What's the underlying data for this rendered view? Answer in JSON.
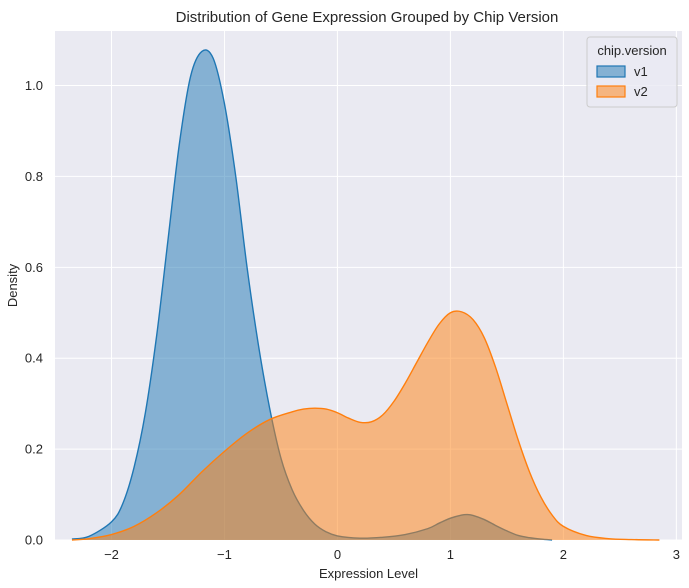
{
  "chart_data": {
    "type": "area",
    "title": "Distribution of Gene Expression Grouped by Chip Version",
    "xlabel": "Expression Level",
    "ylabel": "Density",
    "xlim": [
      -2.5,
      3.05
    ],
    "ylim": [
      0,
      1.12
    ],
    "xticks": [
      -2,
      -1,
      0,
      1,
      2,
      3
    ],
    "xtick_labels": [
      "−2",
      "−1",
      "0",
      "1",
      "2",
      "3"
    ],
    "yticks": [
      0.0,
      0.2,
      0.4,
      0.6,
      0.8,
      1.0
    ],
    "ytick_labels": [
      "0.0",
      "0.2",
      "0.4",
      "0.6",
      "0.8",
      "1.0"
    ],
    "grid": true,
    "background": "#eaeaf2",
    "legend": {
      "title": "chip.version",
      "placement": "top-right"
    },
    "series": [
      {
        "name": "v1",
        "color": "#1f77b4",
        "fill_alpha": 0.5,
        "x": [
          -2.35,
          -2.2,
          -2.0,
          -1.9,
          -1.8,
          -1.7,
          -1.6,
          -1.5,
          -1.4,
          -1.3,
          -1.2,
          -1.1,
          -1.0,
          -0.9,
          -0.8,
          -0.7,
          -0.6,
          -0.5,
          -0.4,
          -0.3,
          -0.2,
          -0.1,
          0.0,
          0.2,
          0.4,
          0.6,
          0.8,
          0.9,
          1.0,
          1.1,
          1.15,
          1.2,
          1.3,
          1.4,
          1.5,
          1.6,
          1.7,
          1.8,
          1.9
        ],
        "y": [
          0.002,
          0.008,
          0.04,
          0.08,
          0.16,
          0.28,
          0.45,
          0.66,
          0.87,
          1.02,
          1.075,
          1.06,
          0.96,
          0.8,
          0.6,
          0.43,
          0.29,
          0.18,
          0.11,
          0.065,
          0.035,
          0.018,
          0.009,
          0.004,
          0.006,
          0.012,
          0.025,
          0.037,
          0.048,
          0.055,
          0.056,
          0.054,
          0.045,
          0.032,
          0.02,
          0.01,
          0.005,
          0.002,
          0.0
        ]
      },
      {
        "name": "v2",
        "color": "#ff7f0e",
        "fill_alpha": 0.5,
        "x": [
          -2.35,
          -2.2,
          -2.0,
          -1.8,
          -1.6,
          -1.4,
          -1.2,
          -1.0,
          -0.8,
          -0.6,
          -0.4,
          -0.3,
          -0.2,
          -0.1,
          0.0,
          0.1,
          0.2,
          0.3,
          0.4,
          0.5,
          0.6,
          0.7,
          0.8,
          0.9,
          1.0,
          1.1,
          1.2,
          1.3,
          1.4,
          1.5,
          1.6,
          1.7,
          1.8,
          1.9,
          2.0,
          2.2,
          2.4,
          2.6,
          2.85
        ],
        "y": [
          0.0,
          0.003,
          0.012,
          0.03,
          0.06,
          0.1,
          0.15,
          0.195,
          0.235,
          0.265,
          0.282,
          0.288,
          0.29,
          0.288,
          0.28,
          0.268,
          0.259,
          0.26,
          0.275,
          0.305,
          0.345,
          0.39,
          0.435,
          0.475,
          0.5,
          0.502,
          0.485,
          0.445,
          0.38,
          0.3,
          0.22,
          0.15,
          0.095,
          0.055,
          0.03,
          0.01,
          0.003,
          0.001,
          0.0
        ]
      }
    ]
  }
}
